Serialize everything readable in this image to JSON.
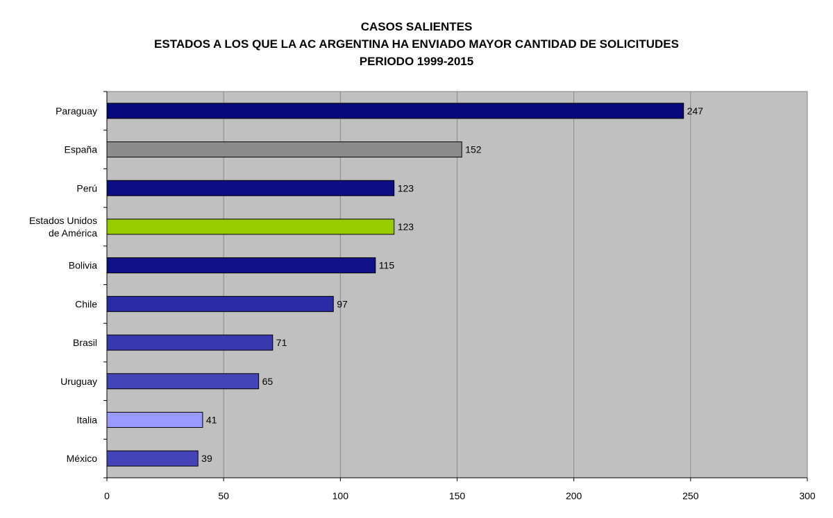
{
  "titles": [
    "CASOS SALIENTES",
    "ESTADOS A LOS QUE LA AC ARGENTINA HA ENVIADO MAYOR CANTIDAD DE SOLICITUDES",
    "PERIODO 1999-2015"
  ],
  "chart_data": {
    "type": "bar",
    "orientation": "horizontal",
    "title": "CASOS SALIENTES",
    "subtitle": "ESTADOS A LOS QUE LA AC ARGENTINA HA ENVIADO MAYOR CANTIDAD DE SOLICITUDES",
    "period": "PERIODO 1999-2015",
    "categories": [
      [
        "Paraguay"
      ],
      [
        "España"
      ],
      [
        "Perú"
      ],
      [
        "Estados Unidos",
        "de América"
      ],
      [
        "Bolivia"
      ],
      [
        "Chile"
      ],
      [
        "Brasil"
      ],
      [
        "Uruguay"
      ],
      [
        "Italia"
      ],
      [
        "México"
      ]
    ],
    "values": [
      247,
      152,
      123,
      123,
      115,
      97,
      71,
      65,
      41,
      39
    ],
    "colors": [
      "#08087a",
      "#8c8c8c",
      "#0c0c84",
      "#99cc00",
      "#101088",
      "#2a2aa4",
      "#3838ae",
      "#4444b6",
      "#9999ff",
      "#4444b8"
    ],
    "xlim": [
      0,
      300
    ],
    "xticks": [
      0,
      50,
      100,
      150,
      200,
      250,
      300
    ],
    "grid": "vertical",
    "plot_background": "#c0c0c0",
    "legend": "none",
    "data_labels": true
  }
}
